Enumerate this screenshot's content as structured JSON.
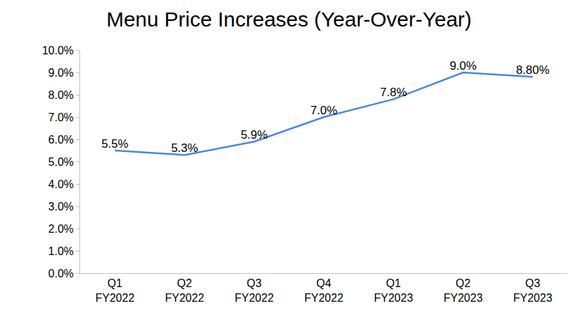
{
  "chart_data": {
    "type": "line",
    "title": "Menu Price Increases (Year-Over-Year)",
    "categories": [
      "Q1 FY2022",
      "Q2 FY2022",
      "Q3 FY2022",
      "Q4 FY2022",
      "Q1 FY2023",
      "Q2 FY2023",
      "Q3 FY2023"
    ],
    "values": [
      5.5,
      5.3,
      5.9,
      7.0,
      7.8,
      9.0,
      8.8
    ],
    "value_labels": [
      "5.5%",
      "5.3%",
      "5.9%",
      "7.0%",
      "7.8%",
      "9.0%",
      "8.80%"
    ],
    "color": "#4a86e0",
    "ylim": [
      0,
      10
    ],
    "yticks": [
      {
        "value": 0,
        "label": "0.0%"
      },
      {
        "value": 1,
        "label": "1.0%"
      },
      {
        "value": 2,
        "label": "2.0%"
      },
      {
        "value": 3,
        "label": "3.0%"
      },
      {
        "value": 4,
        "label": "4.0%"
      },
      {
        "value": 5,
        "label": "5.0%"
      },
      {
        "value": 6,
        "label": "6.0%"
      },
      {
        "value": 7,
        "label": "7.0%"
      },
      {
        "value": 8,
        "label": "8.0%"
      },
      {
        "value": 9,
        "label": "9.0%"
      },
      {
        "value": 10,
        "label": "10.0%"
      }
    ],
    "grid": false,
    "data_labels": true
  }
}
